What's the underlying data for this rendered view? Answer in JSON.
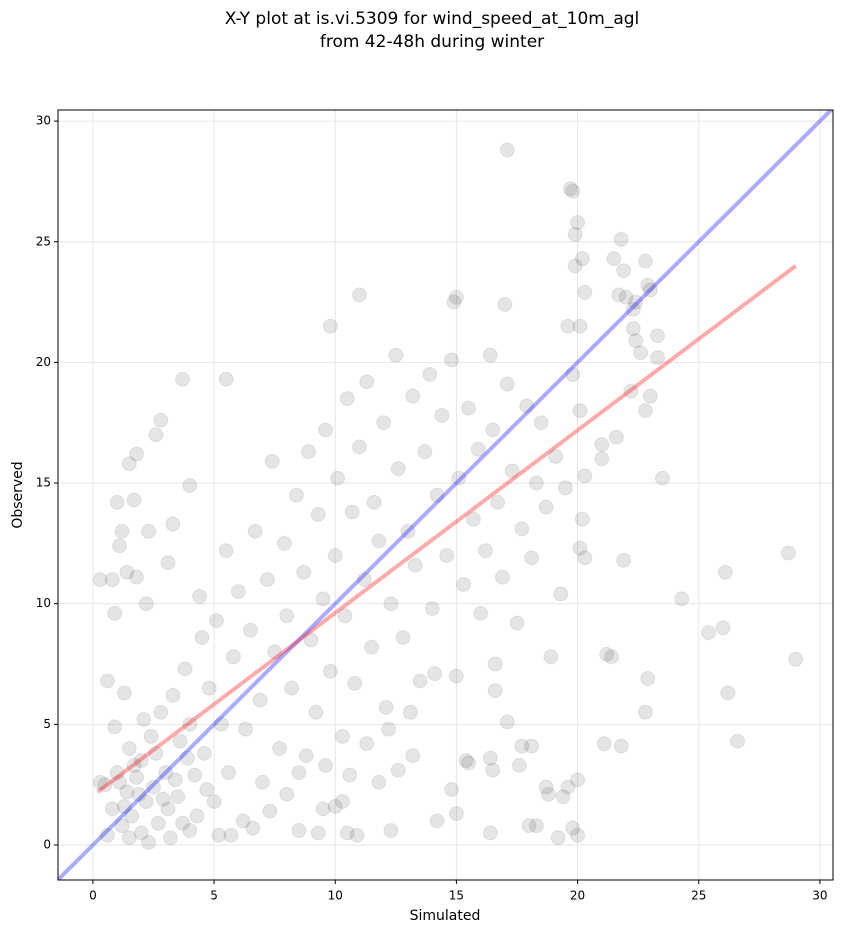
{
  "chart_data": {
    "type": "scatter",
    "title": "X-Y plot at is.vi.5309 for wind_speed_at_10m_agl",
    "subtitle": "from 42-48h during winter",
    "x_label": "Simulated",
    "y_label": "Observed",
    "xlim": [
      -1.44,
      30.54
    ],
    "ylim": [
      -1.45,
      30.46
    ],
    "xticks": [
      0,
      5,
      10,
      15,
      20,
      25,
      30
    ],
    "yticks": [
      0,
      5,
      10,
      15,
      20,
      25,
      30
    ],
    "grid": true,
    "series": [
      {
        "color": "#000000",
        "x": [
          17.1,
          19.7,
          19.8,
          20,
          19.9,
          20.2,
          19.9,
          21.8,
          21.5,
          22.8,
          21.9,
          22.9,
          20.3,
          22,
          22.4,
          22.3,
          23,
          21.7,
          11,
          15,
          14.9,
          17,
          9.8,
          19.6,
          20.1,
          22.3,
          23.3,
          22.4,
          23.3,
          22.6,
          23,
          22.2,
          22.8,
          21.6,
          21,
          23.5,
          21,
          20.2,
          20.1,
          20.3,
          21.9,
          28.7,
          24.3,
          26.1,
          25.4,
          26,
          29,
          26.2,
          26.6,
          22.8,
          22.9,
          21.2,
          21.4,
          21.1,
          21.8,
          20,
          19.6,
          19.4,
          18.7,
          18.8,
          19.2,
          19.8,
          20,
          18,
          18.3,
          16.4,
          17.6,
          17.7,
          17.1,
          16.6,
          16.6,
          18.1,
          16.4,
          16.5,
          15.4,
          15.5,
          14.8,
          15,
          14.2,
          13.2,
          12.6,
          12.3,
          11.8,
          10.5,
          10.9,
          9.3,
          8.5,
          9.5,
          10,
          10.3,
          3.7,
          5.5,
          1.8,
          1.5,
          2.8,
          2.6,
          4,
          1,
          1.7,
          1.2,
          1.1,
          1.4,
          0.8,
          1.8,
          0.3,
          2.3,
          3.3,
          0.9,
          2.2,
          4.4,
          3.1,
          0.6,
          1.3,
          0.5,
          0.8,
          1,
          1.2,
          1.4,
          1.5,
          1.6,
          1.8,
          2,
          2,
          2.2,
          2.4,
          2.5,
          2.7,
          2.8,
          3,
          3.1,
          3.3,
          3.5,
          3.6,
          3.8,
          4,
          4,
          4.2,
          4.5,
          4.6,
          4.8,
          5,
          5.1,
          5.3,
          5.5,
          5.6,
          5.8,
          6,
          6.2,
          6.3,
          6.5,
          6.7,
          6.9,
          7,
          7.2,
          7.4,
          7.5,
          7.7,
          7.9,
          8,
          8.2,
          8.4,
          8.5,
          8.7,
          8.9,
          9,
          9.2,
          9.3,
          9.5,
          9.6,
          9.8,
          10,
          10.1,
          10.3,
          10.4,
          10.5,
          10.7,
          10.8,
          11,
          11.2,
          11.3,
          11.5,
          11.6,
          11.8,
          12,
          12.1,
          12.3,
          12.5,
          12.6,
          12.8,
          13,
          13.2,
          13.3,
          13.5,
          13.7,
          13.9,
          14,
          14.2,
          14.4,
          14.6,
          14.8,
          15,
          15.1,
          15.3,
          15.5,
          15.7,
          15.9,
          16,
          16.2,
          16.4,
          16.5,
          16.7,
          16.9,
          17.1,
          17.3,
          17.5,
          17.7,
          17.9,
          18.1,
          18.3,
          18.5,
          18.7,
          18.9,
          19.1,
          19.3,
          19.5,
          19.8,
          20.1,
          20.3,
          0.3,
          0.6,
          0.9,
          1.1,
          1.3,
          1.5,
          1.7,
          1.9,
          2.1,
          2.3,
          2.6,
          2.9,
          3.2,
          3.4,
          3.7,
          3.9,
          4.3,
          4.7,
          5.2,
          5.7,
          6.6,
          7.3,
          8,
          8.8,
          9.6,
          10.6,
          11.3,
          12.2,
          13.1,
          14.1
        ],
        "y": [
          28.8,
          27.2,
          27.1,
          25.8,
          25.3,
          24.3,
          24,
          25.1,
          24.3,
          24.2,
          23.8,
          23.2,
          22.9,
          22.7,
          22.5,
          22.2,
          23,
          22.8,
          22.8,
          22.7,
          22.5,
          22.4,
          21.5,
          21.5,
          21.5,
          21.4,
          21.1,
          20.9,
          20.2,
          20.4,
          18.6,
          18.8,
          18,
          16.9,
          16.6,
          15.2,
          16,
          13.5,
          12.3,
          11.9,
          11.8,
          12.1,
          10.2,
          11.3,
          8.8,
          9,
          7.7,
          6.3,
          4.3,
          5.5,
          6.9,
          7.9,
          7.8,
          4.2,
          4.1,
          2.7,
          2.4,
          2,
          2.4,
          2.1,
          0.3,
          0.7,
          0.4,
          0.8,
          0.8,
          0.5,
          3.3,
          4.1,
          5.1,
          6.4,
          7.5,
          4.1,
          3.6,
          3.1,
          3.5,
          3.4,
          2.3,
          1.3,
          1,
          3.7,
          3.1,
          0.6,
          2.6,
          0.5,
          0.4,
          0.5,
          0.6,
          1.5,
          1.6,
          1.8,
          19.3,
          19.3,
          16.2,
          15.8,
          17.6,
          17,
          14.9,
          14.2,
          14.3,
          13,
          12.4,
          11.3,
          11,
          11.1,
          11,
          13,
          13.3,
          9.6,
          10,
          10.3,
          11.7,
          6.8,
          6.3,
          2.5,
          1.5,
          3,
          0.8,
          2.2,
          4,
          1.2,
          2.8,
          0.5,
          3.5,
          1.8,
          4.5,
          2.4,
          0.9,
          5.5,
          3,
          1.5,
          6.2,
          2,
          4.3,
          7.3,
          0.6,
          5,
          2.9,
          8.6,
          3.8,
          6.5,
          1.8,
          9.3,
          5,
          12.2,
          3,
          7.8,
          10.5,
          1,
          4.8,
          8.9,
          13,
          6,
          2.6,
          11,
          15.9,
          8,
          4,
          12.5,
          9.5,
          6.5,
          14.5,
          3,
          11.3,
          16.3,
          8.5,
          5.5,
          13.7,
          10.2,
          17.2,
          7.2,
          12,
          15.2,
          4.5,
          9.5,
          18.5,
          13.8,
          6.7,
          16.5,
          11,
          19.2,
          8.2,
          14.2,
          12.6,
          17.5,
          5.7,
          10,
          20.3,
          15.6,
          8.6,
          13,
          18.6,
          11.6,
          6.8,
          16.3,
          19.5,
          9.8,
          14.5,
          17.8,
          12,
          20.1,
          7,
          15.2,
          10.8,
          18.1,
          13.5,
          16.4,
          9.6,
          12.2,
          20.3,
          17.2,
          14.2,
          11.1,
          19.1,
          15.5,
          9.2,
          13.1,
          18.2,
          11.9,
          15,
          17.5,
          14,
          7.8,
          16.1,
          10.4,
          14.8,
          19.5,
          18,
          15.3,
          2.6,
          0.4,
          4.9,
          2.6,
          1.6,
          0.3,
          3.3,
          2.1,
          5.2,
          0.1,
          3.8,
          1.9,
          0.3,
          2.7,
          0.9,
          3.6,
          1.2,
          2.3,
          0.4,
          0.4,
          0.7,
          1.4,
          2.1,
          3.7,
          3.3,
          2.9,
          4.2,
          4.8,
          5.5,
          7.1
        ]
      }
    ],
    "lines": [
      {
        "color": "#0000ff",
        "x": [
          -1.44,
          30.54
        ],
        "y": [
          -1.44,
          30.54
        ]
      },
      {
        "color": "#ff0000",
        "x": [
          0.2,
          29
        ],
        "y": [
          2.2,
          24
        ]
      }
    ]
  }
}
